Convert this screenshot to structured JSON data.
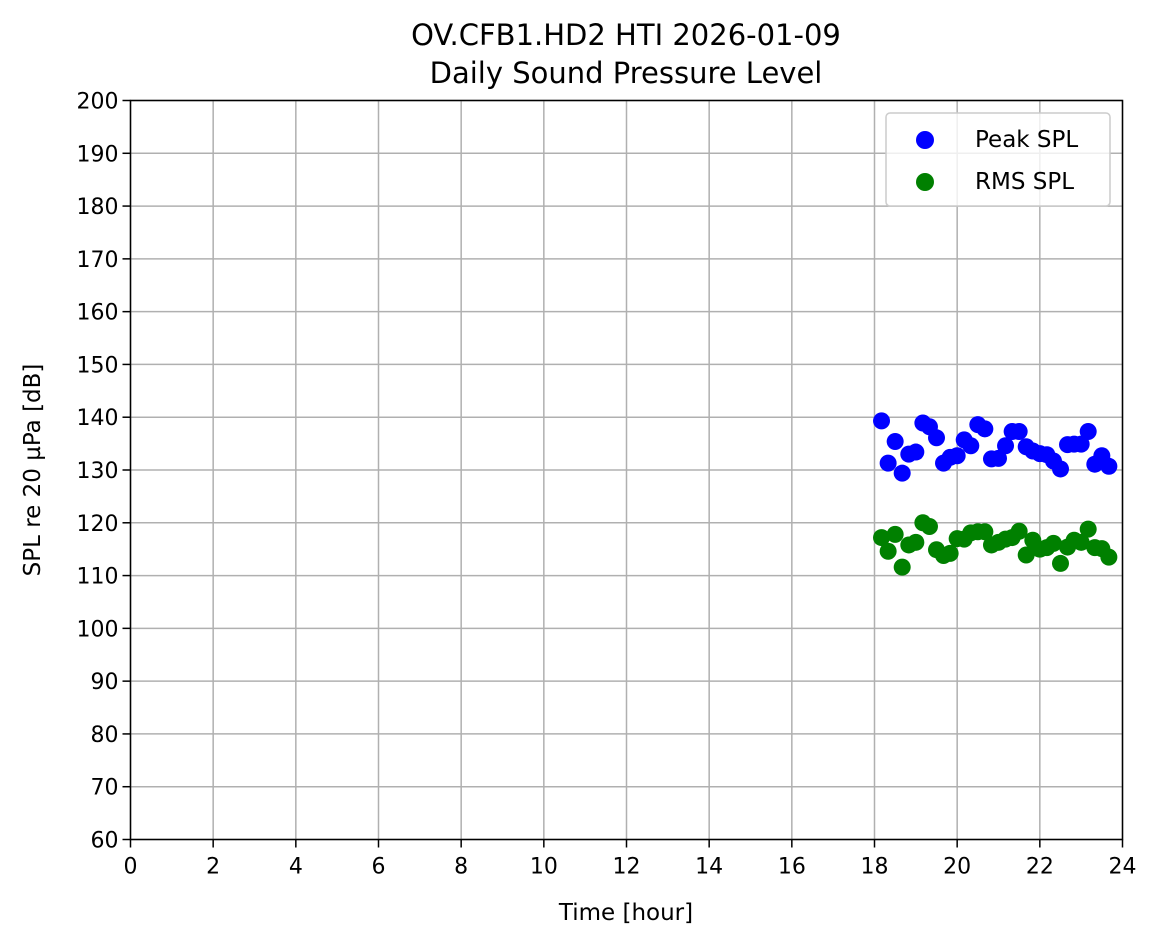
{
  "chart_data": {
    "type": "scatter",
    "title": "OV.CFB1.HD2 HTI 2026-01-09",
    "subtitle": "Daily Sound Pressure Level",
    "xlabel": "Time [hour]",
    "ylabel": "SPL re 20 µPa [dB]",
    "xlim": [
      0,
      24
    ],
    "ylim": [
      60,
      200
    ],
    "xticks": [
      "0",
      "2",
      "4",
      "6",
      "8",
      "10",
      "12",
      "14",
      "16",
      "18",
      "20",
      "22",
      "24"
    ],
    "yticks": [
      "60",
      "70",
      "80",
      "90",
      "100",
      "110",
      "120",
      "130",
      "140",
      "150",
      "160",
      "170",
      "180",
      "190",
      "200"
    ],
    "grid": true,
    "legend_position": "top-right",
    "series": [
      {
        "name": "Peak SPL",
        "color": "#0000ff",
        "points": [
          [
            18.17,
            139.3
          ],
          [
            18.33,
            131.3
          ],
          [
            18.5,
            135.4
          ],
          [
            18.67,
            129.4
          ],
          [
            18.83,
            133.0
          ],
          [
            19.0,
            133.4
          ],
          [
            19.17,
            138.9
          ],
          [
            19.33,
            138.2
          ],
          [
            19.5,
            136.1
          ],
          [
            19.67,
            131.3
          ],
          [
            19.83,
            132.4
          ],
          [
            20.0,
            132.7
          ],
          [
            20.17,
            135.7
          ],
          [
            20.33,
            134.6
          ],
          [
            20.5,
            138.6
          ],
          [
            20.67,
            137.8
          ],
          [
            20.83,
            132.1
          ],
          [
            21.0,
            132.2
          ],
          [
            21.17,
            134.6
          ],
          [
            21.33,
            137.3
          ],
          [
            21.5,
            137.3
          ],
          [
            21.67,
            134.4
          ],
          [
            21.83,
            133.6
          ],
          [
            22.0,
            133.1
          ],
          [
            22.17,
            132.9
          ],
          [
            22.33,
            131.7
          ],
          [
            22.5,
            130.2
          ],
          [
            22.67,
            134.8
          ],
          [
            22.83,
            134.9
          ],
          [
            23.0,
            134.9
          ],
          [
            23.17,
            137.3
          ],
          [
            23.33,
            131.1
          ],
          [
            23.5,
            132.7
          ],
          [
            23.67,
            130.7
          ]
        ]
      },
      {
        "name": "RMS SPL",
        "color": "#008000",
        "points": [
          [
            18.17,
            117.2
          ],
          [
            18.33,
            114.6
          ],
          [
            18.5,
            117.8
          ],
          [
            18.67,
            111.6
          ],
          [
            18.83,
            115.8
          ],
          [
            19.0,
            116.3
          ],
          [
            19.17,
            120.0
          ],
          [
            19.33,
            119.3
          ],
          [
            19.5,
            114.9
          ],
          [
            19.67,
            113.8
          ],
          [
            19.83,
            114.2
          ],
          [
            20.0,
            117.0
          ],
          [
            20.17,
            116.9
          ],
          [
            20.33,
            118.1
          ],
          [
            20.5,
            118.3
          ],
          [
            20.67,
            118.3
          ],
          [
            20.83,
            115.8
          ],
          [
            21.0,
            116.3
          ],
          [
            21.17,
            116.9
          ],
          [
            21.33,
            117.2
          ],
          [
            21.5,
            118.4
          ],
          [
            21.67,
            113.9
          ],
          [
            21.83,
            116.7
          ],
          [
            22.0,
            115.0
          ],
          [
            22.17,
            115.3
          ],
          [
            22.33,
            116.1
          ],
          [
            22.5,
            112.3
          ],
          [
            22.67,
            115.4
          ],
          [
            22.83,
            116.7
          ],
          [
            23.0,
            116.3
          ],
          [
            23.17,
            118.8
          ],
          [
            23.33,
            115.3
          ],
          [
            23.5,
            115.1
          ],
          [
            23.67,
            113.5
          ]
        ]
      }
    ]
  }
}
